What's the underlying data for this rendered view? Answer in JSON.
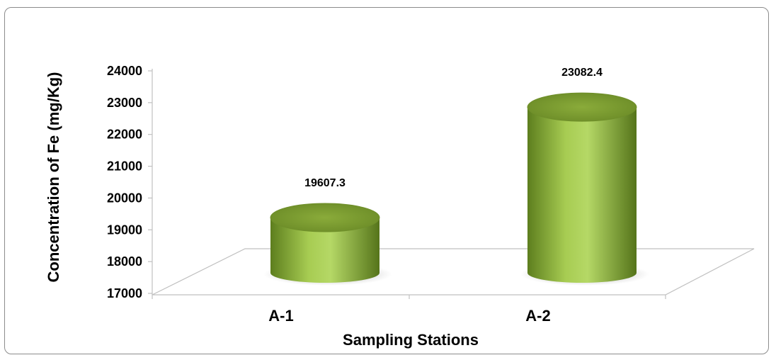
{
  "chart_data": {
    "type": "bar",
    "categories": [
      "A-1",
      "A-2"
    ],
    "values": [
      19607.3,
      23082.4
    ],
    "data_labels": [
      "19607.3",
      "23082.4"
    ],
    "xlabel": "Sampling Stations",
    "ylabel": "Concentration of Fe (mg/Kg)",
    "ylim": [
      17000,
      24000
    ],
    "yticks": [
      "17000",
      "18000",
      "19000",
      "20000",
      "21000",
      "22000",
      "23000",
      "24000"
    ],
    "grid": false,
    "legend": "none",
    "style": "3d-cylinder",
    "bar_color": "#8db53b"
  }
}
